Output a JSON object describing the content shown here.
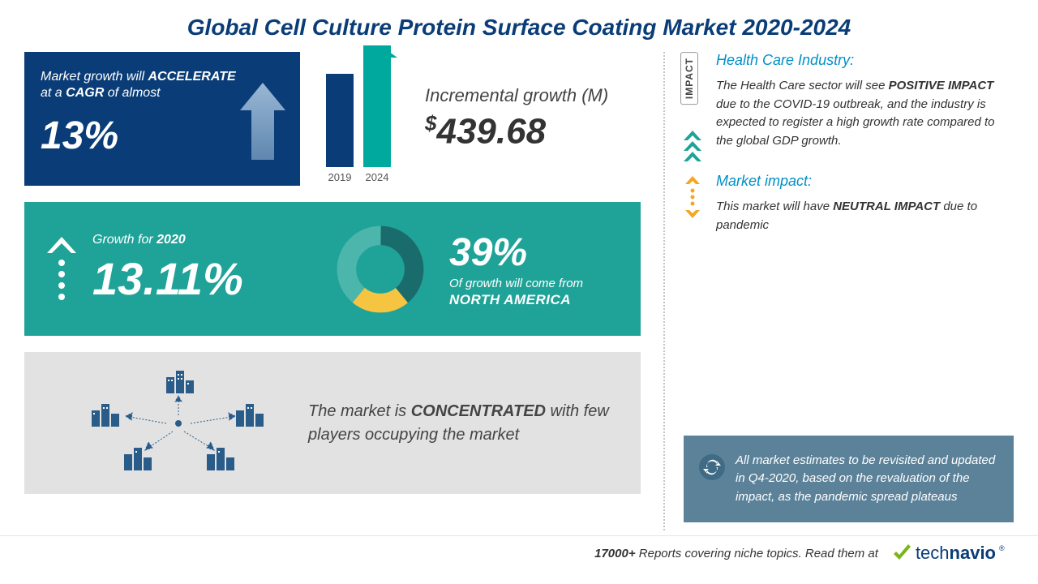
{
  "title": "Global Cell Culture Protein Surface Coating Market 2020-2024",
  "colors": {
    "navy": "#0a3d78",
    "teal": "#1fa398",
    "teal_bright": "#00a99d",
    "light_gray_box": "#e2e2e2",
    "note_bg": "#5c8299",
    "accent_blue": "#008fc7",
    "orange": "#f5a623",
    "donut_dark": "#1a6b6b",
    "donut_yellow": "#f5c542",
    "donut_light": "#4db6ac"
  },
  "cagr": {
    "line1_pre": "Market growth will ",
    "line1_bold": "ACCELERATE",
    "line2_pre": "at a ",
    "line2_bold": "CAGR",
    "line2_post": " of almost",
    "value": "13%"
  },
  "incremental": {
    "bars": [
      {
        "year": "2019",
        "height": 115,
        "color": "#0a3d78"
      },
      {
        "year": "2024",
        "height": 150,
        "color": "#00a99d"
      }
    ],
    "label": "Incremental growth (M)",
    "currency": "$",
    "value": "439.68"
  },
  "growth2020": {
    "label_pre": "Growth for ",
    "label_year": "2020",
    "value": "13.11%"
  },
  "region": {
    "donut_segments": [
      {
        "color": "#1a6b6b",
        "pct": 39
      },
      {
        "color": "#f5c542",
        "pct": 22
      },
      {
        "color": "#4db6ac",
        "pct": 39
      }
    ],
    "pct": "39%",
    "sub": "Of growth will come from",
    "region": "NORTH AMERICA"
  },
  "concentration": {
    "text_pre": "The market is ",
    "text_bold": "CONCENTRATED",
    "text_post": " with few players occupying the market"
  },
  "impact": {
    "badge": "IMPACT",
    "hc_title": "Health Care Industry:",
    "hc_body_1": "The Health Care sector will see ",
    "hc_body_bold": "POSITIVE IMPACT",
    "hc_body_2": " due to the COVID-19 outbreak, and the industry is expected to register a high growth rate compared to the global GDP growth.",
    "mi_title": "Market impact:",
    "mi_body_1": "This market will have ",
    "mi_body_bold": "NEUTRAL IMPACT",
    "mi_body_2": " due to pandemic"
  },
  "note": "All market estimates to be revisited and updated in Q4-2020, based on the revaluation of the impact, as the pandemic spread plateaus",
  "footer": {
    "count_bold": "17000+",
    "text": " Reports covering niche topics. Read them at",
    "logo_check_color": "#7cb518",
    "logo_pre": "tech",
    "logo_bold": "navio"
  }
}
